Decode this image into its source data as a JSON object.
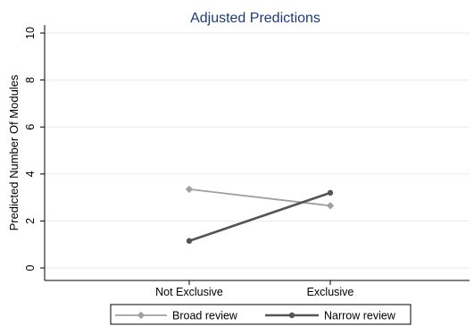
{
  "chart_data": {
    "type": "line",
    "title": "Adjusted Predictions",
    "xlabel": "",
    "ylabel": "Predicted Number Of Modules",
    "categories": [
      "Not Exclusive",
      "Exclusive"
    ],
    "ylim": [
      0,
      10
    ],
    "yticks": [
      0,
      2,
      4,
      6,
      8,
      10
    ],
    "grid": true,
    "legend_position": "bottom",
    "series": [
      {
        "name": "Broad review",
        "values": [
          3.35,
          2.65
        ],
        "color": "#a0a0a0",
        "marker": "diamond"
      },
      {
        "name": "Narrow review",
        "values": [
          1.15,
          3.2
        ],
        "color": "#545454",
        "marker": "circle"
      }
    ]
  }
}
